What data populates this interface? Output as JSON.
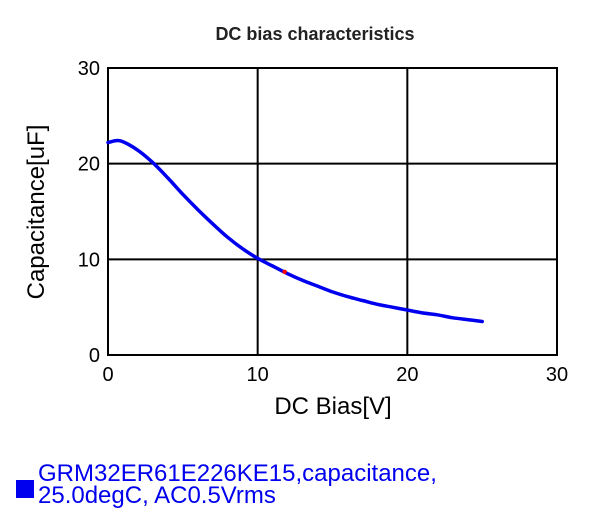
{
  "chart_data": {
    "type": "line",
    "title": "DC bias characteristics",
    "xlabel": "DC Bias[V]",
    "ylabel": "Capacitance[uF]",
    "xlim": [
      0,
      30
    ],
    "ylim": [
      0,
      30
    ],
    "xticks": [
      0,
      10,
      20,
      30
    ],
    "yticks": [
      0,
      10,
      20,
      30
    ],
    "grid": true,
    "series": [
      {
        "name": "GRM32ER61E226KE15,capacitance,25.0degC, AC0.5Vrms",
        "color": "#0000ee",
        "x": [
          0,
          0.5,
          1,
          2,
          3,
          4,
          5,
          6,
          7,
          8,
          9,
          10,
          11,
          12,
          13,
          14,
          15,
          16,
          17,
          18,
          19,
          20,
          21,
          22,
          23,
          24,
          25
        ],
        "y": [
          22.2,
          22.4,
          22.3,
          21.4,
          20.1,
          18.5,
          16.8,
          15.2,
          13.7,
          12.3,
          11.1,
          10.1,
          9.3,
          8.5,
          7.8,
          7.2,
          6.6,
          6.1,
          5.7,
          5.3,
          5.0,
          4.7,
          4.4,
          4.2,
          3.9,
          3.7,
          3.5
        ]
      }
    ],
    "marker": {
      "x": 11.8,
      "y": 8.7,
      "color": "#ff0000"
    },
    "legend": {
      "position": "bottom-left",
      "line1": "GRM32ER61E226KE15,capacitance,",
      "line2": "25.0degC, AC0.5Vrms",
      "color": "#0000ee"
    }
  }
}
